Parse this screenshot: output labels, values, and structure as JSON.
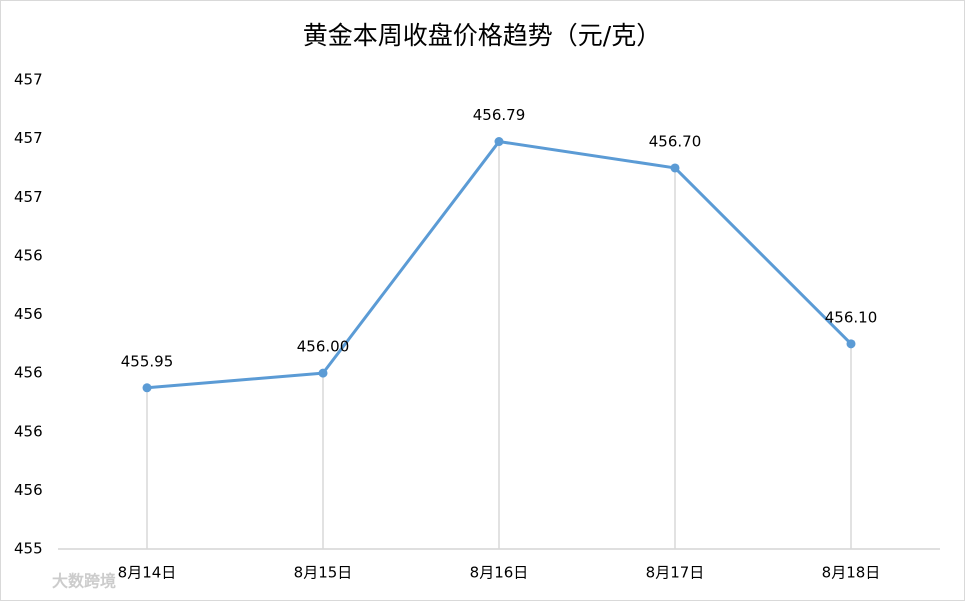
{
  "chart_data": {
    "type": "line",
    "title": "黄金本周收盘价格趋势（元/克）",
    "categories": [
      "8月14日",
      "8月15日",
      "8月16日",
      "8月17日",
      "8月18日"
    ],
    "values": [
      455.95,
      456.0,
      456.79,
      456.7,
      456.1
    ],
    "value_labels": [
      "455.95",
      "456.00",
      "456.79",
      "456.70",
      "456.10"
    ],
    "color": "#5b9bd5",
    "ylim": [
      455.4,
      457.0
    ],
    "yticks": [
      {
        "value": 455.4,
        "label": "455"
      },
      {
        "value": 455.6,
        "label": "456"
      },
      {
        "value": 455.8,
        "label": "456"
      },
      {
        "value": 456.0,
        "label": "456"
      },
      {
        "value": 456.2,
        "label": "456"
      },
      {
        "value": 456.4,
        "label": "456"
      },
      {
        "value": 456.6,
        "label": "457"
      },
      {
        "value": 456.8,
        "label": "457"
      },
      {
        "value": 457.0,
        "label": "457"
      }
    ],
    "drop_lines": true,
    "watermark": "大数跨境"
  }
}
